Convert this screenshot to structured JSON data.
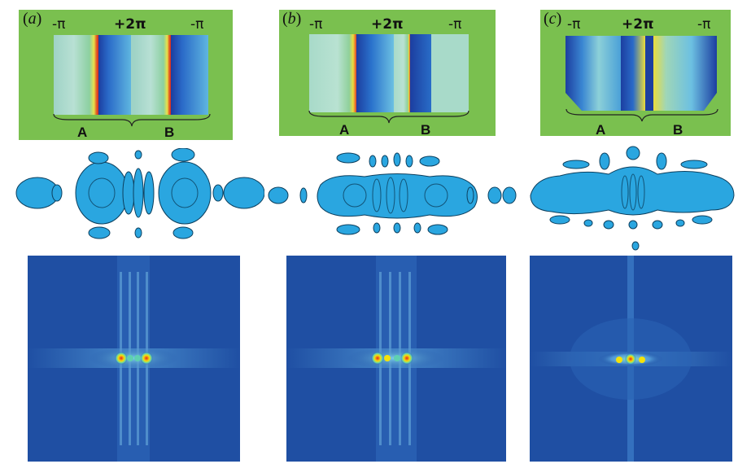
{
  "panels": [
    {
      "label_open": "(",
      "label_letter": "a",
      "label_close": ")",
      "phase_left": "-π",
      "phase_mid": "+2π",
      "phase_right": "-π",
      "region_a": "A",
      "region_b": "B"
    },
    {
      "label_open": "(",
      "label_letter": "b",
      "label_close": ")",
      "phase_left": "-π",
      "phase_mid": "+2π",
      "phase_right": "-π",
      "region_a": "A",
      "region_b": "B"
    },
    {
      "label_open": "(",
      "label_letter": "c",
      "label_close": ")",
      "phase_left": "-π",
      "phase_mid": "+2π",
      "phase_right": "-π",
      "region_a": "A",
      "region_b": "B"
    }
  ],
  "colors": {
    "panel_background": "#7ac04f",
    "isosurface": "#2aa6e0",
    "diffraction_background": "#1f4fa3",
    "hot_peak": "#e8231f",
    "warm_peak": "#f5e20a"
  }
}
